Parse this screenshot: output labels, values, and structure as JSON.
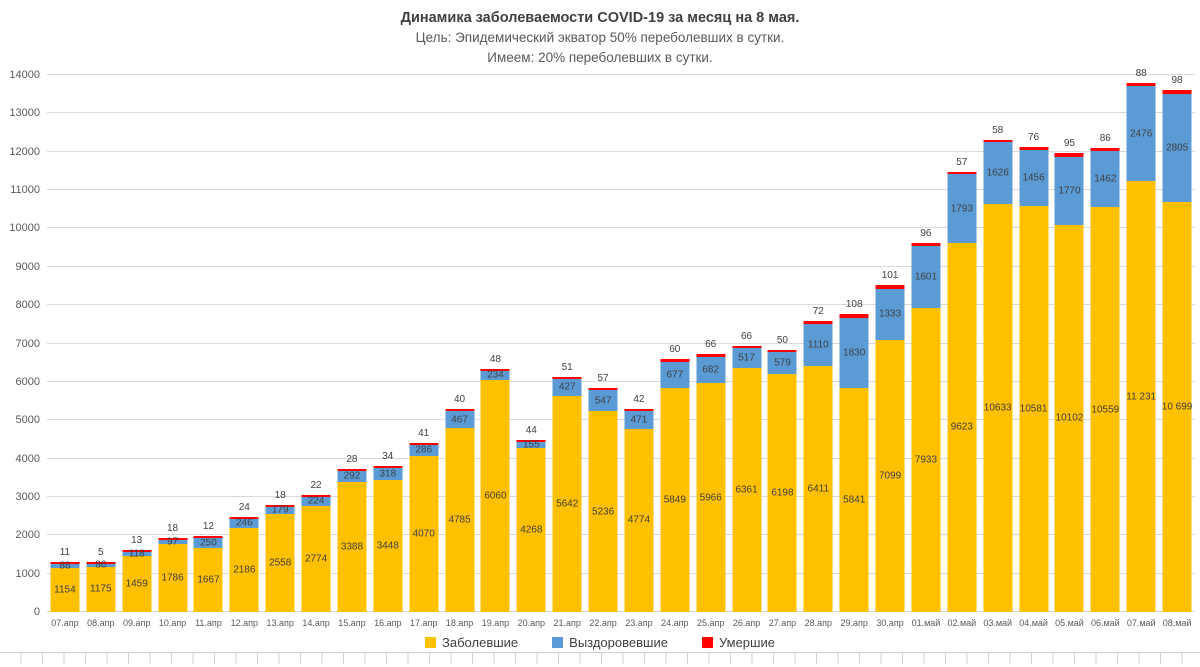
{
  "title": {
    "main": "Динамика заболеваемости COVID-19 за месяц на 8 мая.",
    "sub1": "Цель: Эпидемический экватор 50% переболевших в сутки.",
    "sub2": "Имеем: 20% переболевших в сутки."
  },
  "chart_data": {
    "type": "bar",
    "stacked": true,
    "title": "Динамика заболеваемости COVID-19 за месяц на 8 мая.",
    "subtitle1": "Цель: Эпидемический экватор 50% переболевших в сутки.",
    "subtitle2": "Имеем: 20% переболевших в сутки.",
    "grid": true,
    "legend_position": "bottom",
    "ylim": [
      0,
      14000
    ],
    "ytick_step": 1000,
    "categories": [
      "07.апр",
      "08.апр",
      "09.апр",
      "10.апр",
      "11.апр",
      "12.апр",
      "13.апр",
      "14.апр",
      "15.апр",
      "16.апр",
      "17.апр",
      "18.апр",
      "19.апр",
      "20.апр",
      "21.апр",
      "22.апр",
      "23.апр",
      "24.апр",
      "25.апр",
      "26.апр",
      "27.апр",
      "28.апр",
      "29.апр",
      "30.апр",
      "01.май",
      "02.май",
      "03.май",
      "04.май",
      "05.май",
      "06.май",
      "07.май",
      "08.май"
    ],
    "series": [
      {
        "name": "Заболевшие",
        "color": "#FFC000",
        "values": [
          1154,
          1175,
          1459,
          1786,
          1667,
          2186,
          2558,
          2774,
          3388,
          3448,
          4070,
          4785,
          6060,
          4268,
          5642,
          5236,
          4774,
          5849,
          5966,
          6361,
          6198,
          6411,
          5841,
          7099,
          7933,
          9623,
          10633,
          10581,
          10102,
          10559,
          11231,
          10699
        ],
        "labels": [
          "1154",
          "1175",
          "1459",
          "1786",
          "1667",
          "2186",
          "2558",
          "2774",
          "3388",
          "3448",
          "4070",
          "4785",
          "6060",
          "4268",
          "5642",
          "5236",
          "4774",
          "5849",
          "5966",
          "6361",
          "6198",
          "6411",
          "5841",
          "7099",
          "7933",
          "9623",
          "10633",
          "10581",
          "10102",
          "10559",
          "11 231",
          "10 699"
        ]
      },
      {
        "name": "Выздоровевшие",
        "color": "#5B9BD5",
        "values": [
          88,
          86,
          118,
          97,
          250,
          246,
          179,
          224,
          292,
          318,
          286,
          467,
          234,
          155,
          427,
          547,
          471,
          677,
          682,
          517,
          579,
          1110,
          1830,
          1333,
          1601,
          1793,
          1626,
          1456,
          1770,
          1462,
          2476,
          2805
        ],
        "labels": [
          "88",
          "86",
          "118",
          "97",
          "250",
          "246",
          "179",
          "224",
          "292",
          "318",
          "286",
          "467",
          "234",
          "155",
          "427",
          "547",
          "471",
          "677",
          "682",
          "517",
          "579",
          "1110",
          "1830",
          "1333",
          "1601",
          "1793",
          "1626",
          "1456",
          "1770",
          "1462",
          "2476",
          "2805"
        ]
      },
      {
        "name": "Умершие",
        "color": "#FF0000",
        "values": [
          11,
          5,
          13,
          18,
          12,
          24,
          18,
          22,
          28,
          34,
          41,
          40,
          48,
          44,
          51,
          57,
          42,
          60,
          66,
          66,
          50,
          72,
          108,
          101,
          96,
          57,
          58,
          76,
          95,
          86,
          88,
          98
        ],
        "labels": [
          "11",
          "5",
          "13",
          "18",
          "12",
          "24",
          "18",
          "22",
          "28",
          "34",
          "41",
          "40",
          "48",
          "44",
          "51",
          "57",
          "42",
          "60",
          "66",
          "66",
          "50",
          "72",
          "108",
          "101",
          "96",
          "57",
          "58",
          "76",
          "95",
          "86",
          "88",
          "98"
        ]
      }
    ],
    "colors": {
      "grid": "#d9d9d9",
      "axis_text": "#595959",
      "label_text": "#404040"
    }
  }
}
